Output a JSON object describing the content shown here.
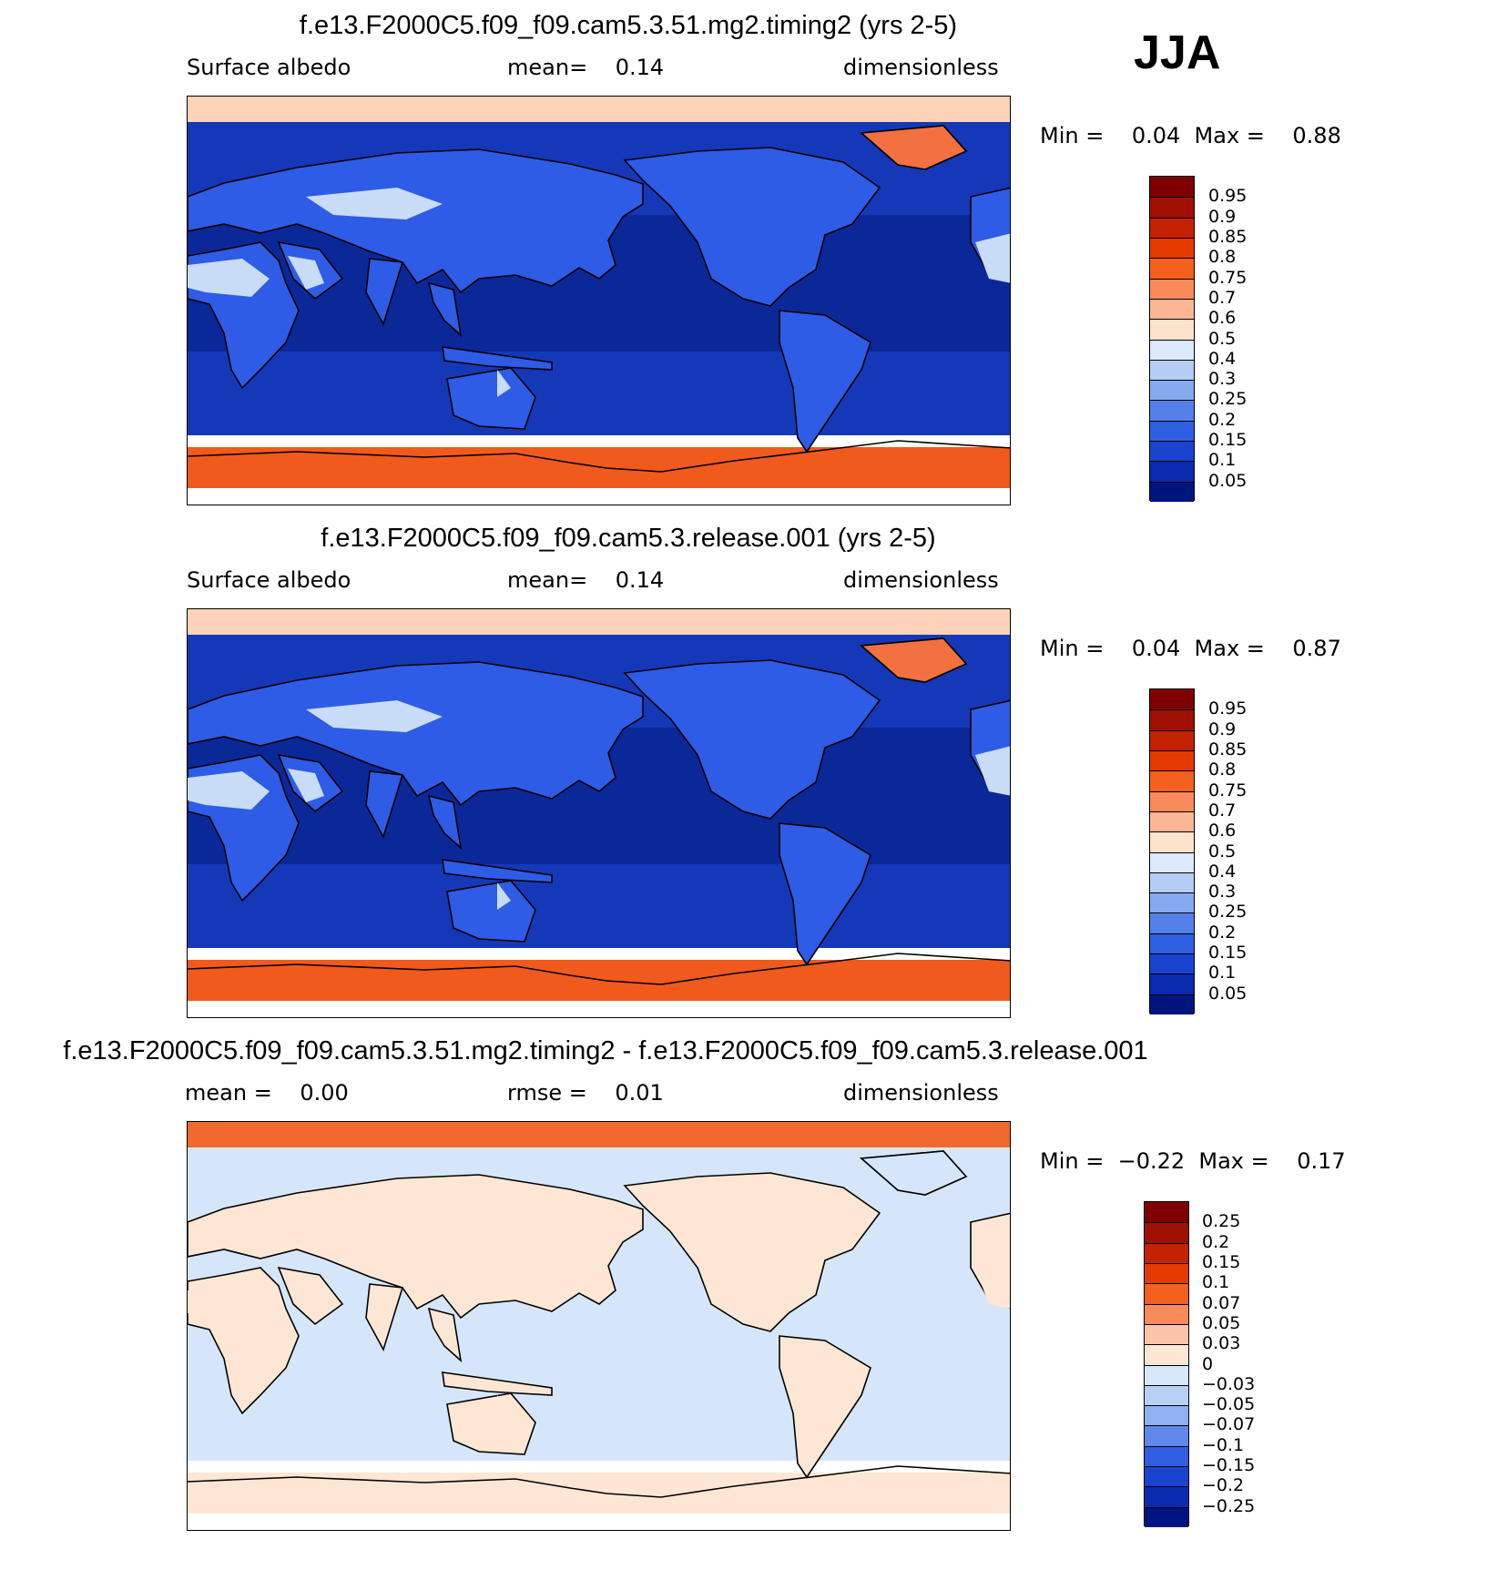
{
  "season": "JJA",
  "panels": [
    {
      "title": "f.e13.F2000C5.f09_f09.cam5.3.51.mg2.timing2 (yrs 2-5)",
      "left_label": "Surface albedo",
      "center_label": "mean=    0.14",
      "right_label": "dimensionless",
      "minmax": "Min =    0.04  Max =    0.88",
      "colorbar": {
        "labels": [
          "0.95",
          "0.9",
          "0.85",
          "0.8",
          "0.75",
          "0.7",
          "0.6",
          "0.5",
          "0.4",
          "0.3",
          "0.25",
          "0.2",
          "0.15",
          "0.1",
          "0.05"
        ],
        "colors": [
          "#7f0000",
          "#a01000",
          "#c42200",
          "#e43a00",
          "#f5601e",
          "#f98a5a",
          "#fbb696",
          "#fde2cc",
          "#dce9fb",
          "#b5cdf6",
          "#86aaf0",
          "#5580ea",
          "#2f5fe0",
          "#1844d0",
          "#0a2ab0",
          "#001480"
        ]
      },
      "map": {
        "ocean_color": "#1438b8",
        "tropics_color": "#0a2898",
        "land_color": "#2e5ce6",
        "desert_color": "#c8dcf8",
        "polar_color": "#f05a1c",
        "arctic_color": "#fcd2b8",
        "greenland_color": "#f37040"
      }
    },
    {
      "title": "f.e13.F2000C5.f09_f09.cam5.3.release.001 (yrs 2-5)",
      "left_label": "Surface albedo",
      "center_label": "mean=    0.14",
      "right_label": "dimensionless",
      "minmax": "Min =    0.04  Max =    0.87",
      "colorbar": {
        "labels": [
          "0.95",
          "0.9",
          "0.85",
          "0.8",
          "0.75",
          "0.7",
          "0.6",
          "0.5",
          "0.4",
          "0.3",
          "0.25",
          "0.2",
          "0.15",
          "0.1",
          "0.05"
        ],
        "colors": [
          "#7f0000",
          "#a01000",
          "#c42200",
          "#e43a00",
          "#f5601e",
          "#f98a5a",
          "#fbb696",
          "#fde2cc",
          "#dce9fb",
          "#b5cdf6",
          "#86aaf0",
          "#5580ea",
          "#2f5fe0",
          "#1844d0",
          "#0a2ab0",
          "#001480"
        ]
      },
      "map": {
        "ocean_color": "#1438b8",
        "tropics_color": "#0a2898",
        "land_color": "#2e5ce6",
        "desert_color": "#c8dcf8",
        "polar_color": "#f05a1c",
        "arctic_color": "#fcd2b8",
        "greenland_color": "#f37040"
      }
    },
    {
      "title": "f.e13.F2000C5.f09_f09.cam5.3.51.mg2.timing2 - f.e13.F2000C5.f09_f09.cam5.3.release.001",
      "left_label": "mean =    0.00",
      "center_label": "rmse =    0.01",
      "right_label": "dimensionless",
      "minmax": "Min =  −0.22  Max =    0.17",
      "colorbar": {
        "labels": [
          "0.25",
          "0.2",
          "0.15",
          "0.1",
          "0.07",
          "0.05",
          "0.03",
          "0",
          "−0.03",
          "−0.05",
          "−0.07",
          "−0.1",
          "−0.15",
          "−0.2",
          "−0.25"
        ],
        "colors": [
          "#7f0000",
          "#a01000",
          "#c42200",
          "#e43a00",
          "#f5601e",
          "#f98a5a",
          "#fbc4a8",
          "#fde6d4",
          "#d8e8fa",
          "#b8d0f6",
          "#90b0f0",
          "#6088ea",
          "#2f5fe0",
          "#1844d0",
          "#0a2ab0",
          "#001480"
        ]
      },
      "map": {
        "ocean_color": "#d6e6fa",
        "tropics_color": "#d6e6fa",
        "land_color": "#fde6d4",
        "desert_color": "#fde6d4",
        "polar_color": "#fde6d4",
        "arctic_color": "#f06a30",
        "greenland_color": "#d6e6fa"
      }
    }
  ]
}
